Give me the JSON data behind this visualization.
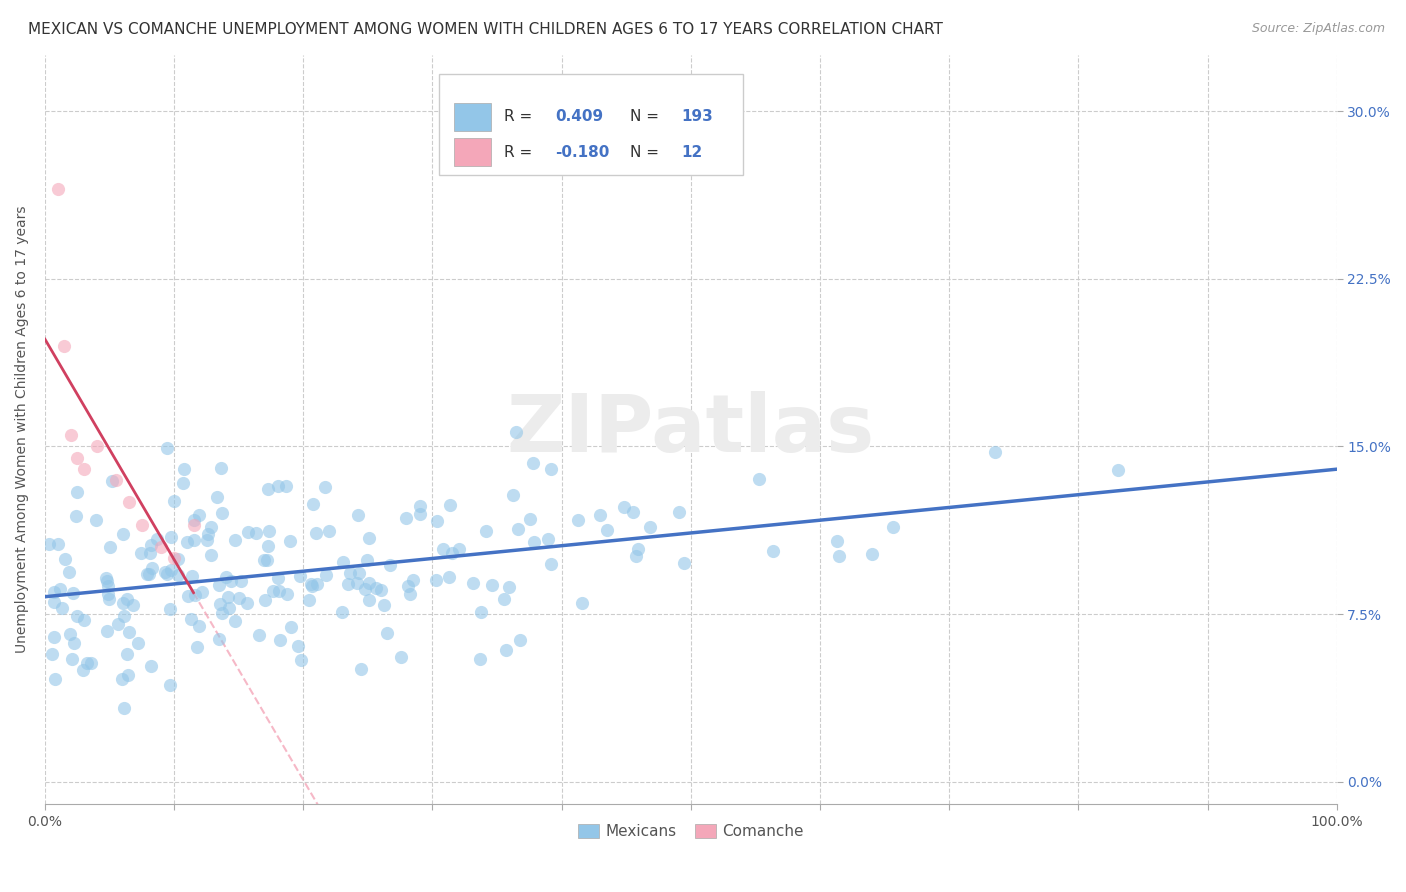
{
  "title": "MEXICAN VS COMANCHE UNEMPLOYMENT AMONG WOMEN WITH CHILDREN AGES 6 TO 17 YEARS CORRELATION CHART",
  "source": "Source: ZipAtlas.com",
  "ylabel": "Unemployment Among Women with Children Ages 6 to 17 years",
  "legend_bottom": [
    "Mexicans",
    "Comanche"
  ],
  "r_mexican": 0.409,
  "n_mexican": 193,
  "r_comanche": -0.18,
  "n_comanche": 12,
  "xlim": [
    0.0,
    1.0
  ],
  "ylim": [
    -0.01,
    0.325
  ],
  "xticks": [
    0.0,
    0.1,
    0.2,
    0.3,
    0.4,
    0.5,
    0.6,
    0.7,
    0.8,
    0.9,
    1.0
  ],
  "xticklabels_sparse": [
    "0.0%",
    "",
    "",
    "",
    "",
    "",
    "",
    "",
    "",
    "",
    "100.0%"
  ],
  "yticks_right": [
    0.0,
    0.075,
    0.15,
    0.225,
    0.3
  ],
  "yticklabels_right": [
    "0.0%",
    "7.5%",
    "15.0%",
    "22.5%",
    "30.0%"
  ],
  "color_mexican": "#93C6E8",
  "color_comanche": "#F4A7B9",
  "line_color_mexican": "#4472C4",
  "line_color_comanche": "#D04060",
  "line_color_comanche_dashed": "#F4A7B9",
  "watermark": "ZIPatlas",
  "background_color": "#ffffff",
  "grid_color": "#cccccc",
  "title_fontsize": 11,
  "axis_label_fontsize": 10,
  "tick_fontsize": 10,
  "scatter_alpha": 0.6,
  "scatter_size": 90
}
